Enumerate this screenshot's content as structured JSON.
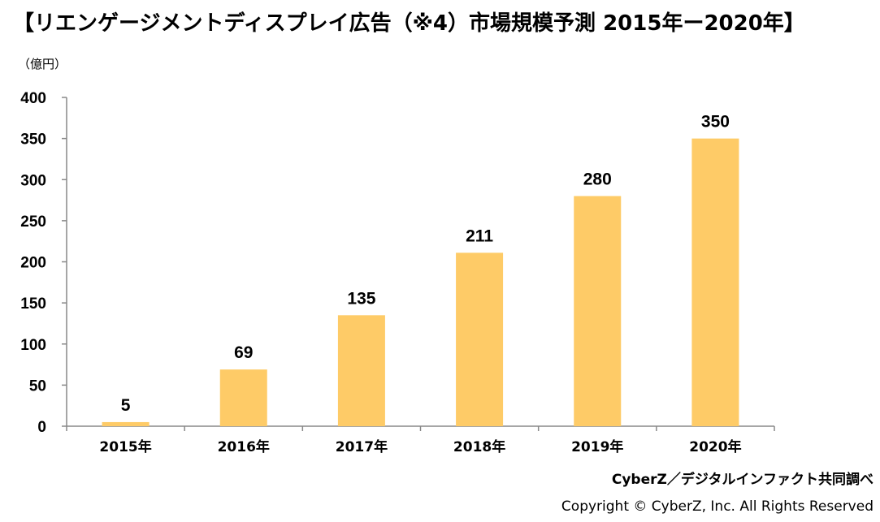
{
  "title": "【リエンゲージメントディスプレイ広告（※4）市場規模予測 2015年ー2020年】",
  "unit_label": "（億円）",
  "source": "CyberZ／デジタルインファクト共同調べ",
  "copyright": "Copyright © CyberZ, Inc. All Rights Reserved",
  "colors": {
    "bar": "#FECB67",
    "axis": "#888888"
  },
  "chart_data": {
    "type": "bar",
    "title": "【リエンゲージメントディスプレイ広告（※4）市場規模予測 2015年ー2020年】",
    "xlabel": "",
    "ylabel": "（億円）",
    "ylim": [
      0,
      400
    ],
    "yticks": [
      0,
      50,
      100,
      150,
      200,
      250,
      300,
      350,
      400
    ],
    "categories": [
      "2015年",
      "2016年",
      "2017年",
      "2018年",
      "2019年",
      "2020年"
    ],
    "values": [
      5,
      69,
      135,
      211,
      280,
      350
    ],
    "data_labels": [
      "5",
      "69",
      "135",
      "211",
      "280",
      "350"
    ],
    "grid": false,
    "legend": "none"
  }
}
